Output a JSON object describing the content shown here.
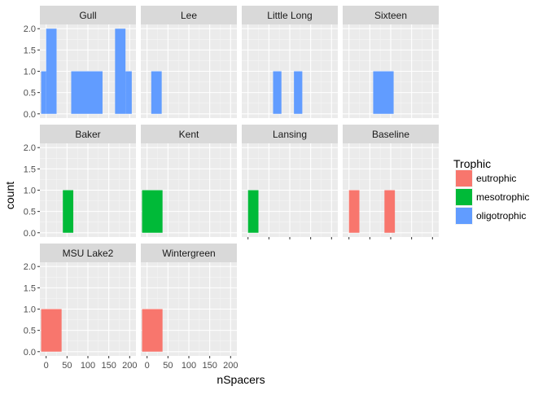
{
  "chart_data": {
    "type": "bar",
    "xlabel": "nSpacers",
    "ylabel": "count",
    "xlim": [
      -15,
      215
    ],
    "ylim": [
      -0.1,
      2.1
    ],
    "x_ticks": [
      "0",
      "50",
      "100",
      "150",
      "200"
    ],
    "y_ticks": [
      "0.0",
      "0.5",
      "1.0",
      "1.5",
      "2.0"
    ],
    "x_tick_values": [
      0,
      50,
      100,
      150,
      200
    ],
    "y_tick_values": [
      0,
      0.5,
      1.0,
      1.5,
      2.0
    ],
    "legend": {
      "title": "Trophic",
      "position": "right",
      "entries": [
        {
          "label": "eutrophic",
          "color": "#F8766D"
        },
        {
          "label": "mesotrophic",
          "color": "#00BA38"
        },
        {
          "label": "oligotrophic",
          "color": "#619CFF"
        }
      ]
    },
    "panels": [
      {
        "name": "Gull",
        "trophic": "oligotrophic",
        "bars": [
          {
            "x0": -12,
            "x1": 0,
            "count": 1
          },
          {
            "x0": 0,
            "x1": 25,
            "count": 2
          },
          {
            "x0": 60,
            "x1": 135,
            "count": 1
          },
          {
            "x0": 165,
            "x1": 190,
            "count": 2
          },
          {
            "x0": 190,
            "x1": 205,
            "count": 1
          }
        ]
      },
      {
        "name": "Lee",
        "trophic": "oligotrophic",
        "bars": [
          {
            "x0": 10,
            "x1": 35,
            "count": 1
          }
        ]
      },
      {
        "name": "Little Long",
        "trophic": "oligotrophic",
        "bars": [
          {
            "x0": 60,
            "x1": 80,
            "count": 1
          },
          {
            "x0": 110,
            "x1": 130,
            "count": 1
          }
        ]
      },
      {
        "name": "Sixteen",
        "trophic": "oligotrophic",
        "bars": [
          {
            "x0": 58,
            "x1": 107,
            "count": 1
          }
        ]
      },
      {
        "name": "Baker",
        "trophic": "mesotrophic",
        "bars": [
          {
            "x0": 40,
            "x1": 65,
            "count": 1
          }
        ]
      },
      {
        "name": "Kent",
        "trophic": "mesotrophic",
        "bars": [
          {
            "x0": -12,
            "x1": 37,
            "count": 1
          }
        ]
      },
      {
        "name": "Lansing",
        "trophic": "mesotrophic",
        "bars": [
          {
            "x0": 0,
            "x1": 25,
            "count": 1
          }
        ]
      },
      {
        "name": "Baseline",
        "trophic": "eutrophic",
        "bars": [
          {
            "x0": 0,
            "x1": 25,
            "count": 1
          },
          {
            "x0": 85,
            "x1": 110,
            "count": 1
          }
        ]
      },
      {
        "name": "MSU Lake2",
        "trophic": "eutrophic",
        "bars": [
          {
            "x0": -12,
            "x1": 37,
            "count": 1
          }
        ]
      },
      {
        "name": "Wintergreen",
        "trophic": "eutrophic",
        "bars": [
          {
            "x0": -12,
            "x1": 37,
            "count": 1
          }
        ]
      }
    ]
  }
}
